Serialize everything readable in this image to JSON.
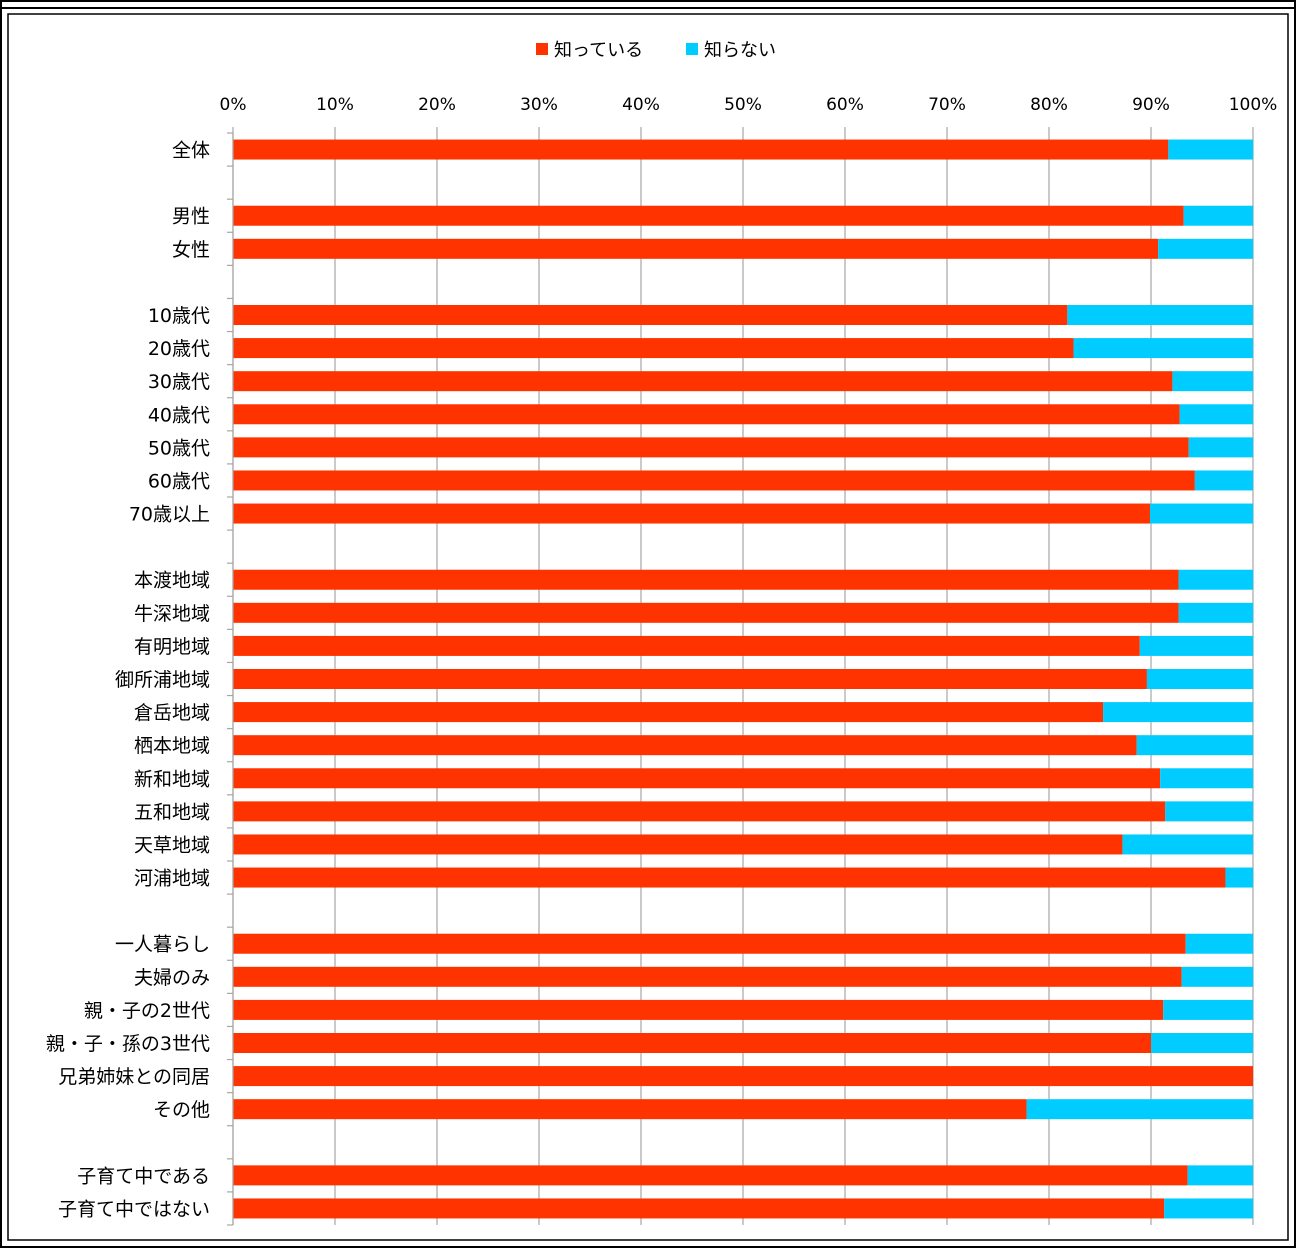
{
  "chart_data": {
    "type": "bar",
    "orientation": "horizontal",
    "stacked": true,
    "legend_position": "top",
    "grid": true,
    "xlim": [
      0,
      100
    ],
    "x_ticks": [
      "0%",
      "10%",
      "20%",
      "30%",
      "40%",
      "50%",
      "60%",
      "70%",
      "80%",
      "90%",
      "100%"
    ],
    "colors": {
      "known": "#ff3300",
      "unknown": "#00ccff",
      "grid": "#a6a6a6",
      "frame": "#000000"
    },
    "series": [
      {
        "name": "知っている",
        "color": "#ff3300"
      },
      {
        "name": "知らない",
        "color": "#00ccff"
      }
    ],
    "categories": [
      {
        "label": "全体",
        "known": 91.7
      },
      {
        "label": "",
        "known": null
      },
      {
        "label": "男性",
        "known": 93.2
      },
      {
        "label": "女性",
        "known": 90.7
      },
      {
        "label": "",
        "known": null
      },
      {
        "label": "10歳代",
        "known": 81.8
      },
      {
        "label": "20歳代",
        "known": 82.4
      },
      {
        "label": "30歳代",
        "known": 92.1
      },
      {
        "label": "40歳代",
        "known": 92.8
      },
      {
        "label": "50歳代",
        "known": 93.7
      },
      {
        "label": "60歳代",
        "known": 94.3
      },
      {
        "label": "70歳以上",
        "known": 89.9
      },
      {
        "label": "",
        "known": null
      },
      {
        "label": "本渡地域",
        "known": 92.7
      },
      {
        "label": "牛深地域",
        "known": 92.7
      },
      {
        "label": "有明地域",
        "known": 88.9
      },
      {
        "label": "御所浦地域",
        "known": 89.6
      },
      {
        "label": "倉岳地域",
        "known": 85.3
      },
      {
        "label": "栖本地域",
        "known": 88.6
      },
      {
        "label": "新和地域",
        "known": 90.9
      },
      {
        "label": "五和地域",
        "known": 91.4
      },
      {
        "label": "天草地域",
        "known": 87.2
      },
      {
        "label": "河浦地域",
        "known": 97.3
      },
      {
        "label": "",
        "known": null
      },
      {
        "label": "一人暮らし",
        "known": 93.4
      },
      {
        "label": "夫婦のみ",
        "known": 93.0
      },
      {
        "label": "親・子の2世代",
        "known": 91.2
      },
      {
        "label": "親・子・孫の3世代",
        "known": 90.0
      },
      {
        "label": "兄弟姉妹との同居",
        "known": 100.0
      },
      {
        "label": "その他",
        "known": 77.8
      },
      {
        "label": "",
        "known": null
      },
      {
        "label": "子育て中である",
        "known": 93.6
      },
      {
        "label": "子育て中ではない",
        "known": 91.3
      }
    ]
  }
}
